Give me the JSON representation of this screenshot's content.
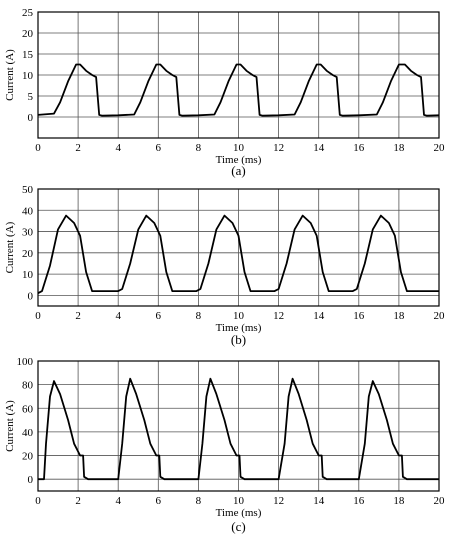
{
  "chart_data": [
    {
      "type": "line",
      "panel_label": "(a)",
      "xlabel": "Time (ms)",
      "ylabel": "Current (A)",
      "xlim": [
        0,
        20
      ],
      "ylim": [
        -5,
        25
      ],
      "xticks": [
        "0",
        "2",
        "4",
        "6",
        "8",
        "10",
        "12",
        "14",
        "16",
        "18",
        "20"
      ],
      "yticks": [
        "0",
        "5",
        "10",
        "15",
        "20",
        "25"
      ],
      "grid": true,
      "line_color": "#000000",
      "series": [
        {
          "x": [
            0,
            0.8,
            1.1,
            1.5,
            1.9,
            2.1,
            2.4,
            2.7,
            2.9,
            3.05,
            3.2,
            4.0,
            4.8,
            5.1,
            5.5,
            5.9,
            6.1,
            6.4,
            6.7,
            6.9,
            7.05,
            7.2,
            8.0,
            8.8,
            9.1,
            9.5,
            9.9,
            10.1,
            10.4,
            10.7,
            10.9,
            11.05,
            11.2,
            12.0,
            12.8,
            13.1,
            13.5,
            13.9,
            14.1,
            14.4,
            14.7,
            14.9,
            15.05,
            15.2,
            16.0,
            16.9,
            17.2,
            17.6,
            18.0,
            18.3,
            18.6,
            18.9,
            19.1,
            19.25,
            19.4,
            20
          ],
          "y": [
            0.5,
            0.8,
            3.5,
            8.5,
            12.5,
            12.5,
            11.0,
            10.0,
            9.5,
            0.5,
            0.3,
            0.4,
            0.6,
            3.5,
            8.5,
            12.5,
            12.5,
            11.0,
            10.0,
            9.5,
            0.5,
            0.3,
            0.4,
            0.6,
            3.5,
            8.5,
            12.5,
            12.5,
            11.0,
            10.0,
            9.5,
            0.5,
            0.3,
            0.4,
            0.6,
            3.5,
            8.5,
            12.5,
            12.5,
            11.0,
            10.0,
            9.5,
            0.5,
            0.3,
            0.4,
            0.6,
            3.5,
            8.5,
            12.5,
            12.5,
            11.0,
            10.0,
            9.5,
            0.5,
            0.3,
            0.4
          ]
        }
      ]
    },
    {
      "type": "line",
      "panel_label": "(b)",
      "xlabel": "Time (ms)",
      "ylabel": "Current (A)",
      "xlim": [
        0,
        20
      ],
      "ylim": [
        -5,
        50
      ],
      "xticks": [
        "0",
        "2",
        "4",
        "6",
        "8",
        "10",
        "12",
        "14",
        "16",
        "18",
        "20"
      ],
      "yticks": [
        "0",
        "10",
        "20",
        "30",
        "40",
        "50"
      ],
      "grid": true,
      "line_color": "#000000",
      "series": [
        {
          "x": [
            0,
            0.2,
            0.6,
            1.0,
            1.4,
            1.8,
            2.1,
            2.4,
            2.7,
            4.0,
            4.2,
            4.6,
            5.0,
            5.4,
            5.8,
            6.1,
            6.4,
            6.7,
            7.9,
            8.1,
            8.5,
            8.9,
            9.3,
            9.7,
            10.0,
            10.3,
            10.6,
            11.8,
            12.0,
            12.4,
            12.8,
            13.2,
            13.6,
            13.9,
            14.2,
            14.5,
            15.7,
            15.9,
            16.3,
            16.7,
            17.1,
            17.5,
            17.8,
            18.1,
            18.4,
            20
          ],
          "y": [
            1.0,
            2.0,
            14.0,
            31.0,
            37.5,
            34.0,
            28.0,
            11.0,
            2.0,
            2.0,
            3.0,
            15.0,
            31.0,
            37.5,
            34.0,
            28.0,
            11.0,
            2.0,
            2.0,
            3.0,
            15.0,
            31.0,
            37.5,
            34.0,
            28.0,
            11.0,
            2.0,
            2.0,
            3.0,
            15.0,
            31.0,
            37.5,
            34.0,
            28.0,
            11.0,
            2.0,
            2.0,
            3.0,
            15.0,
            31.0,
            37.5,
            34.0,
            28.0,
            11.0,
            2.0,
            2.0
          ]
        }
      ]
    },
    {
      "type": "line",
      "panel_label": "(c)",
      "xlabel": "Time (ms)",
      "ylabel": "Current (A)",
      "xlim": [
        0,
        20
      ],
      "ylim": [
        -10,
        100
      ],
      "xticks": [
        "0",
        "2",
        "4",
        "6",
        "8",
        "10",
        "12",
        "14",
        "16",
        "18",
        "20"
      ],
      "yticks": [
        "0",
        "20",
        "40",
        "60",
        "80",
        "100"
      ],
      "grid": true,
      "line_color": "#000000",
      "series": [
        {
          "x": [
            0,
            0.3,
            0.4,
            0.6,
            0.8,
            1.1,
            1.5,
            1.8,
            2.1,
            2.25,
            2.3,
            2.5,
            4.0,
            4.2,
            4.4,
            4.6,
            4.9,
            5.3,
            5.6,
            5.9,
            6.05,
            6.1,
            6.3,
            8.0,
            8.2,
            8.4,
            8.6,
            8.9,
            9.3,
            9.6,
            9.9,
            10.05,
            10.1,
            10.3,
            12.0,
            12.3,
            12.5,
            12.7,
            13.0,
            13.4,
            13.7,
            14.0,
            14.15,
            14.2,
            14.4,
            16.0,
            16.3,
            16.5,
            16.7,
            17.0,
            17.4,
            17.7,
            18.0,
            18.15,
            18.2,
            18.4,
            20
          ],
          "y": [
            0,
            0,
            30,
            70,
            83,
            72,
            50,
            30,
            20,
            20,
            2,
            0,
            0,
            30,
            70,
            85,
            72,
            50,
            30,
            20,
            20,
            2,
            0,
            0,
            30,
            70,
            85,
            72,
            50,
            30,
            20,
            20,
            2,
            0,
            0,
            30,
            70,
            85,
            72,
            50,
            30,
            20,
            20,
            2,
            0,
            0,
            30,
            70,
            83,
            72,
            50,
            30,
            20,
            20,
            2,
            0,
            0
          ]
        }
      ]
    }
  ]
}
